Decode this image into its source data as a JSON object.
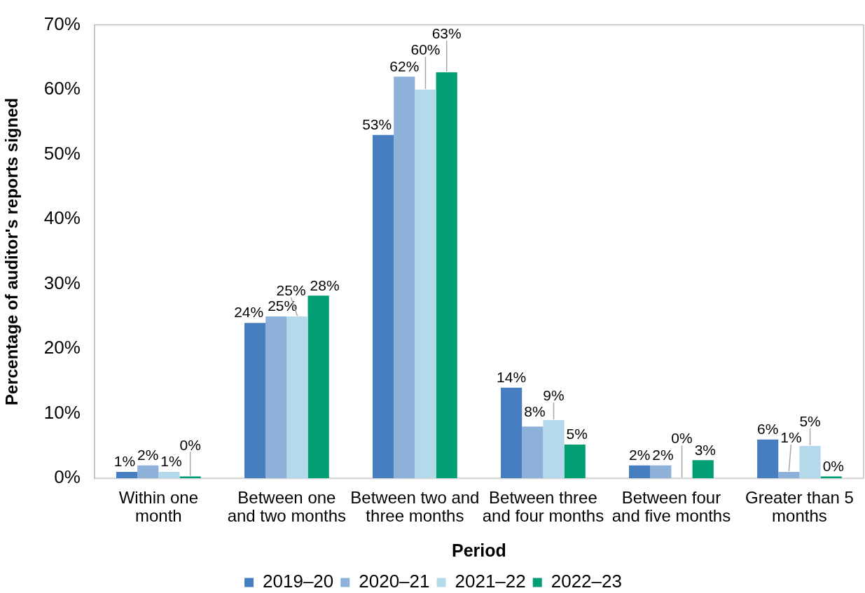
{
  "chart_data": {
    "type": "bar",
    "xlabel": "Period",
    "ylabel": "Percentage of auditor's reports signed",
    "categories": [
      "Within one month",
      "Between one and two months",
      "Between two and three months",
      "Between three and four months",
      "Between four and five months",
      "Greater than 5 months"
    ],
    "series": [
      {
        "name": "2019–20",
        "color": "#477ebf",
        "values": [
          1,
          24,
          53,
          14,
          2,
          6
        ],
        "value_labels": [
          "1%",
          "24%",
          "53%",
          "14%",
          "2%",
          "6%"
        ]
      },
      {
        "name": "2020–21",
        "color": "#8eb1da",
        "values": [
          2,
          25,
          62,
          8,
          2,
          1
        ],
        "value_labels": [
          "2%",
          "25%",
          "62%",
          "8%",
          "2%",
          "1%"
        ]
      },
      {
        "name": "2021–22",
        "color": "#b4d9eb",
        "values": [
          1,
          25,
          60,
          9,
          0,
          5
        ],
        "value_labels": [
          "1%",
          "25%",
          "60%",
          "9%",
          "0%",
          "5%"
        ]
      },
      {
        "name": "2022–23",
        "color": "#009e72",
        "values": [
          0.3,
          28.2,
          62.7,
          5.2,
          2.8,
          0.3
        ],
        "value_labels": [
          "0%",
          "28%",
          "63%",
          "5%",
          "3%",
          "0%"
        ]
      }
    ],
    "ylim": [
      0,
      70
    ],
    "yticks": [
      {
        "value": 0,
        "label": "0%"
      },
      {
        "value": 10,
        "label": "10%"
      },
      {
        "value": 20,
        "label": "20%"
      },
      {
        "value": 30,
        "label": "30%"
      },
      {
        "value": 40,
        "label": "40%"
      },
      {
        "value": 50,
        "label": "50%"
      },
      {
        "value": 60,
        "label": "60%"
      },
      {
        "value": 70,
        "label": "70%"
      }
    ],
    "grid": false,
    "legend": "bottom"
  }
}
